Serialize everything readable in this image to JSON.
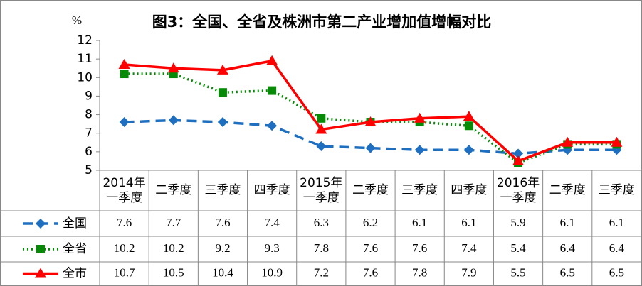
{
  "chart_data": {
    "type": "line",
    "title": "图3：全国、全省及株洲市第二产业增加值增幅对比",
    "y_label": "%",
    "categories": [
      "2014年\n一季度",
      "二季度",
      "三季度",
      "四季度",
      "2015年\n一季度",
      "二季度",
      "三季度",
      "四季度",
      "2016年\n一季度",
      "二季度",
      "三季度"
    ],
    "ylim": [
      5,
      12
    ],
    "yticks": [
      5,
      6,
      7,
      8,
      9,
      10,
      11,
      12
    ],
    "series": [
      {
        "name": "全国",
        "color": "#1f6fc0",
        "dash": "14 8",
        "marker": "diamond",
        "values": [
          7.6,
          7.7,
          7.6,
          7.4,
          6.3,
          6.2,
          6.1,
          6.1,
          5.9,
          6.1,
          6.1
        ]
      },
      {
        "name": "全省",
        "color": "#078a07",
        "dash": "2 4",
        "marker": "square",
        "values": [
          10.2,
          10.2,
          9.2,
          9.3,
          7.8,
          7.6,
          7.6,
          7.4,
          5.4,
          6.4,
          6.4
        ]
      },
      {
        "name": "全市",
        "color": "#ff0000",
        "dash": "none",
        "marker": "triangle",
        "values": [
          10.7,
          10.5,
          10.4,
          10.9,
          7.2,
          7.6,
          7.8,
          7.9,
          5.5,
          6.5,
          6.5
        ]
      }
    ]
  }
}
